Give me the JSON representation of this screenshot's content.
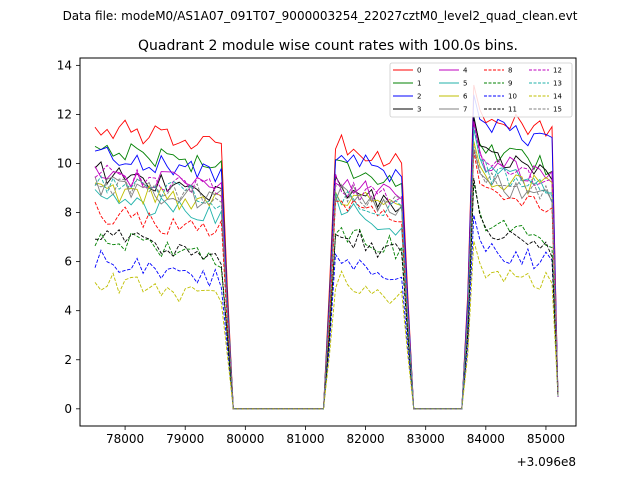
{
  "figure": {
    "suptitle": "Data file: modeM0/AS1A07_091T07_9000003254_22027cztM0_level2_quad_clean.evt"
  },
  "chart_data": {
    "type": "line",
    "title": "Quadrant 2 module wise count rates with 100.0s bins.",
    "xlabel": "",
    "ylabel": "",
    "x_offset_label": "+3.096e8",
    "xlim": [
      77250,
      85500
    ],
    "ylim": [
      -0.7,
      14.3
    ],
    "xticks": [
      78000,
      79000,
      80000,
      81000,
      82000,
      83000,
      84000,
      85000
    ],
    "yticks": [
      0,
      2,
      4,
      6,
      8,
      10,
      12,
      14
    ],
    "segments": [
      {
        "start": 77500,
        "end": 79600
      },
      {
        "start": 81500,
        "end": 82600
      },
      {
        "start": 83800,
        "end": 85100
      }
    ],
    "gap_end_points": [
      79800,
      81300,
      82800,
      83600
    ],
    "x_end": 85200,
    "legend": {
      "location": "upper right",
      "columns": 4
    },
    "series": [
      {
        "name": "0",
        "color": "#ff0000",
        "dash": "solid",
        "levels": [
          11.1,
          10.5,
          11.6
        ],
        "drift": 0.09,
        "peak_boost": 1.0
      },
      {
        "name": "1",
        "color": "#008000",
        "dash": "solid",
        "levels": [
          10.3,
          9.6,
          10.2
        ],
        "drift": 0.08,
        "peak_boost": 1.0
      },
      {
        "name": "2",
        "color": "#0000ff",
        "dash": "solid",
        "levels": [
          10.0,
          9.9,
          11.2
        ],
        "drift": 0.09,
        "peak_boost": 1.0
      },
      {
        "name": "3",
        "color": "#000000",
        "dash": "solid",
        "levels": [
          9.2,
          8.7,
          10.0
        ],
        "drift": 0.1,
        "peak_boost": 1.2
      },
      {
        "name": "4",
        "color": "#bf00bf",
        "dash": "solid",
        "levels": [
          9.3,
          8.9,
          9.8
        ],
        "drift": 0.08,
        "peak_boost": 1.2
      },
      {
        "name": "5",
        "color": "#20b2aa",
        "dash": "solid",
        "levels": [
          8.2,
          7.8,
          9.5
        ],
        "drift": 0.1,
        "peak_boost": 1.2
      },
      {
        "name": "6",
        "color": "#bfbf00",
        "dash": "solid",
        "levels": [
          8.6,
          8.5,
          9.3
        ],
        "drift": 0.06,
        "peak_boost": 1.0
      },
      {
        "name": "7",
        "color": "#808080",
        "dash": "solid",
        "levels": [
          8.8,
          8.5,
          9.0
        ],
        "drift": 0.06,
        "peak_boost": 1.0
      },
      {
        "name": "8",
        "color": "#ff0000",
        "dash": "dashed",
        "levels": [
          7.6,
          7.9,
          8.4
        ],
        "drift": 0.08,
        "peak_boost": 1.3
      },
      {
        "name": "9",
        "color": "#008000",
        "dash": "dashed",
        "levels": [
          6.6,
          6.9,
          7.3
        ],
        "drift": 0.09,
        "peak_boost": 1.2
      },
      {
        "name": "10",
        "color": "#0000ff",
        "dash": "dashed",
        "levels": [
          5.7,
          5.6,
          6.3
        ],
        "drift": 0.08,
        "peak_boost": 1.0
      },
      {
        "name": "11",
        "color": "#000000",
        "dash": "dashed",
        "levels": [
          6.7,
          6.7,
          7.0
        ],
        "drift": 0.1,
        "peak_boost": 1.5
      },
      {
        "name": "12",
        "color": "#bf00bf",
        "dash": "dashed",
        "levels": [
          9.3,
          8.8,
          9.6
        ],
        "drift": 0.07,
        "peak_boost": 1.3
      },
      {
        "name": "13",
        "color": "#20b2aa",
        "dash": "dashed",
        "levels": [
          8.9,
          8.4,
          9.4
        ],
        "drift": 0.07,
        "peak_boost": 1.3
      },
      {
        "name": "14",
        "color": "#bfbf00",
        "dash": "dashed",
        "levels": [
          4.9,
          4.9,
          5.4
        ],
        "drift": 0.07,
        "peak_boost": 0.9
      },
      {
        "name": "15",
        "color": "#808080",
        "dash": "dashed",
        "levels": [
          8.9,
          8.6,
          9.1
        ],
        "drift": 0.06,
        "peak_boost": 1.0
      }
    ]
  }
}
